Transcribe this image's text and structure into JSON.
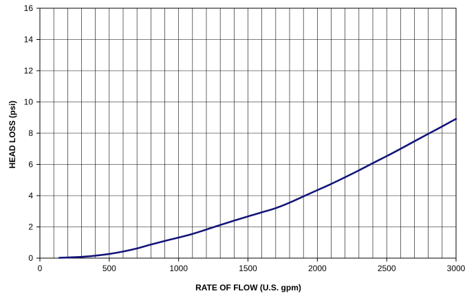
{
  "chart_data": {
    "type": "line",
    "title": "",
    "xlabel": "RATE OF FLOW (U.S. gpm)",
    "ylabel": "HEAD LOSS (psi)",
    "xlim": [
      0,
      3000
    ],
    "ylim": [
      0,
      16
    ],
    "x_ticks": [
      0,
      500,
      1000,
      1500,
      2000,
      2500,
      3000
    ],
    "y_ticks": [
      0,
      2,
      4,
      6,
      8,
      10,
      12,
      14,
      16
    ],
    "x_tick_labels": [
      "0",
      "500",
      "1000",
      "1500",
      "2000",
      "2500",
      "3000"
    ],
    "y_tick_labels": [
      "0",
      "2",
      "4",
      "6",
      "8",
      "10",
      "12",
      "14",
      "16"
    ],
    "grid": true,
    "legend": "none",
    "series": [
      {
        "color": "#14147a",
        "x": [
          140,
          200,
          300,
          400,
          500,
          600,
          700,
          800,
          900,
          1000,
          1100,
          1200,
          1300,
          1400,
          1500,
          1600,
          1700,
          1800,
          1900,
          2000,
          2100,
          2200,
          2300,
          2400,
          2500,
          2600,
          2700,
          2800,
          2900,
          3000
        ],
        "y": [
          0.02,
          0.04,
          0.08,
          0.16,
          0.27,
          0.42,
          0.62,
          0.87,
          1.1,
          1.32,
          1.55,
          1.83,
          2.12,
          2.4,
          2.67,
          2.93,
          3.2,
          3.55,
          3.95,
          4.35,
          4.75,
          5.18,
          5.62,
          6.08,
          6.53,
          7.0,
          7.48,
          7.96,
          8.43,
          8.92
        ]
      }
    ]
  },
  "colors": {
    "background": "#ffffff",
    "grid": "#000000",
    "plot_border": "#000000",
    "line": "#14147a"
  }
}
